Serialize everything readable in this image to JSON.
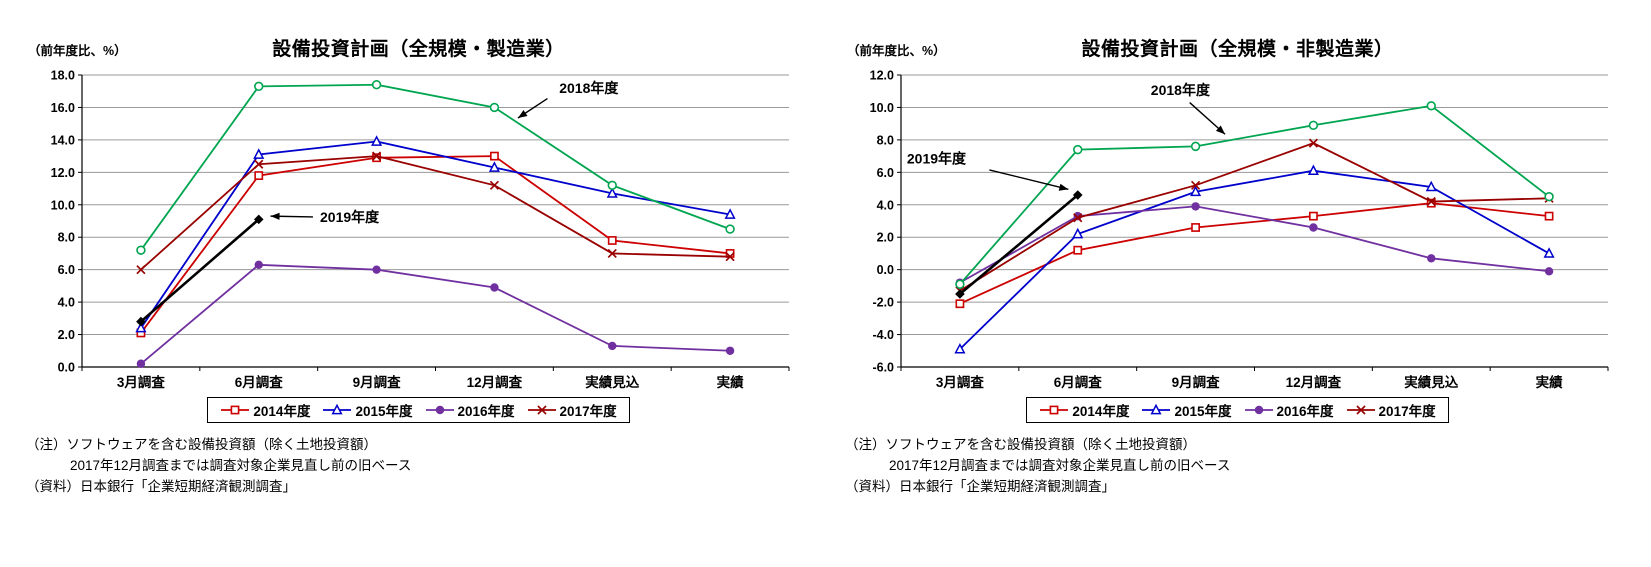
{
  "notes": [
    {
      "text": "（注）ソフトウェアを含む設備投資額（除く土地投資額）",
      "indent": false
    },
    {
      "text": "2017年12月調査までは調査対象企業見直し前の旧ベース",
      "indent": true
    },
    {
      "text": "（資料）日本銀行「企業短期経済観測調査」",
      "indent": false
    }
  ],
  "chart_data": [
    {
      "type": "line",
      "title": "設備投資計画（全規模・製造業）",
      "ylabel": "（前年度比、%）",
      "ylim": [
        0.0,
        18.0
      ],
      "ytick_step": 2.0,
      "grid": true,
      "legend_position": "bottom",
      "categories": [
        "3月調査",
        "6月調査",
        "9月調査",
        "12月調査",
        "実績見込",
        "実績"
      ],
      "series": [
        {
          "name": "2014年度",
          "color": "#CC0000",
          "marker": "square-open",
          "in_legend": true,
          "values": [
            2.1,
            11.8,
            12.9,
            13.0,
            7.8,
            7.0
          ]
        },
        {
          "name": "2015年度",
          "color": "#0000CC",
          "marker": "triangle-open",
          "in_legend": true,
          "values": [
            2.4,
            13.1,
            13.9,
            12.3,
            10.7,
            9.4
          ]
        },
        {
          "name": "2016年度",
          "color": "#7030A0",
          "marker": "circle-filled",
          "in_legend": true,
          "values": [
            0.2,
            6.3,
            6.0,
            4.9,
            1.3,
            1.0
          ]
        },
        {
          "name": "2017年度",
          "color": "#990000",
          "marker": "x",
          "in_legend": true,
          "values": [
            6.0,
            12.5,
            13.0,
            11.2,
            7.0,
            6.8
          ]
        },
        {
          "name": "2018年度",
          "color": "#00A550",
          "marker": "circle-open",
          "in_legend": false,
          "values": [
            7.2,
            17.3,
            17.4,
            16.0,
            11.2,
            8.5
          ]
        },
        {
          "name": "2019年度",
          "color": "#000000",
          "marker": "diamond-filled",
          "in_legend": false,
          "width": 2.6,
          "values": [
            2.8,
            9.1,
            null,
            null,
            null,
            null
          ]
        }
      ],
      "annotations": [
        {
          "label": "2018年度",
          "text_x": 3.55,
          "text_y": 17.15,
          "arrow": [
            [
              3.45,
              16.55
            ],
            [
              3.2,
              15.35
            ]
          ]
        },
        {
          "label": "2019年度",
          "text_x": 1.52,
          "text_y": 9.2,
          "arrow": [
            [
              1.46,
              9.25
            ],
            [
              1.1,
              9.3
            ]
          ]
        }
      ]
    },
    {
      "type": "line",
      "title": "設備投資計画（全規模・非製造業）",
      "ylabel": "（前年度比、%）",
      "ylim": [
        -6.0,
        12.0
      ],
      "ytick_step": 2.0,
      "grid": true,
      "legend_position": "bottom",
      "categories": [
        "3月調査",
        "6月調査",
        "9月調査",
        "12月調査",
        "実績見込",
        "実績"
      ],
      "series": [
        {
          "name": "2014年度",
          "color": "#CC0000",
          "marker": "square-open",
          "in_legend": true,
          "values": [
            -2.1,
            1.2,
            2.6,
            3.3,
            4.1,
            3.3
          ]
        },
        {
          "name": "2015年度",
          "color": "#0000CC",
          "marker": "triangle-open",
          "in_legend": true,
          "values": [
            -4.9,
            2.2,
            4.8,
            6.1,
            5.1,
            1.0
          ]
        },
        {
          "name": "2016年度",
          "color": "#7030A0",
          "marker": "circle-filled",
          "in_legend": true,
          "values": [
            -0.8,
            3.3,
            3.9,
            2.6,
            0.7,
            -0.1
          ]
        },
        {
          "name": "2017年度",
          "color": "#990000",
          "marker": "x",
          "in_legend": true,
          "values": [
            -1.3,
            3.2,
            5.2,
            7.8,
            4.2,
            4.4
          ]
        },
        {
          "name": "2018年度",
          "color": "#00A550",
          "marker": "circle-open",
          "in_legend": false,
          "values": [
            -0.9,
            7.4,
            7.6,
            8.9,
            10.1,
            4.5
          ]
        },
        {
          "name": "2019年度",
          "color": "#000000",
          "marker": "diamond-filled",
          "in_legend": false,
          "width": 2.6,
          "values": [
            -1.5,
            4.6,
            null,
            null,
            null,
            null
          ]
        }
      ],
      "annotations": [
        {
          "label": "2018年度",
          "text_x": 1.62,
          "text_y": 11.0,
          "arrow": [
            [
              1.95,
              10.3
            ],
            [
              2.25,
              8.35
            ]
          ]
        },
        {
          "label": "2019年度",
          "text_x": -0.45,
          "text_y": 6.8,
          "arrow": [
            [
              0.25,
              6.15
            ],
            [
              0.92,
              4.95
            ]
          ]
        }
      ]
    }
  ]
}
